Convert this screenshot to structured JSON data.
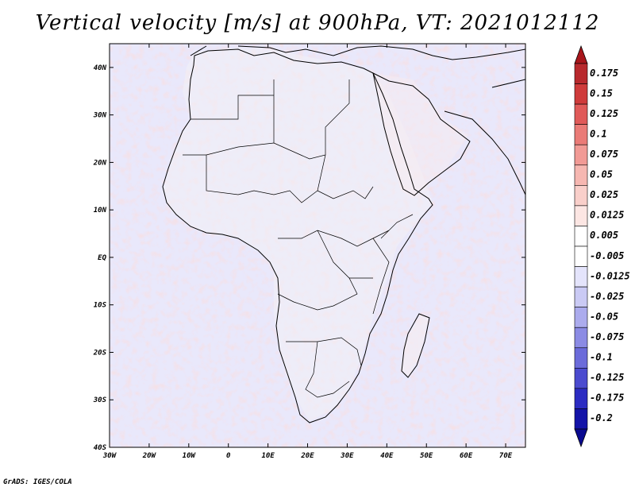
{
  "title": "Vertical velocity [m/s] at 900hPa, VT: 2021012112",
  "credit": "GrADS: IGES/COLA",
  "map": {
    "lon_range": [
      -30,
      75
    ],
    "lat_range": [
      -40,
      45
    ],
    "lat_ticks": [
      "40N",
      "30N",
      "20N",
      "10N",
      "EQ",
      "10S",
      "20S",
      "30S",
      "40S"
    ],
    "lon_ticks": [
      "30W",
      "20W",
      "10W",
      "0",
      "10E",
      "20E",
      "30E",
      "40E",
      "50E",
      "60E",
      "70E"
    ]
  },
  "legend": {
    "labels": [
      "0.175",
      "0.15",
      "0.125",
      "0.1",
      "0.075",
      "0.05",
      "0.025",
      "0.0125",
      "0.005",
      "-0.005",
      "-0.0125",
      "-0.025",
      "-0.05",
      "-0.075",
      "-0.1",
      "-0.125",
      "-0.175",
      "-0.2"
    ],
    "colors": [
      "#b8292d",
      "#cf3b3b",
      "#e05a59",
      "#ea7b77",
      "#f19a95",
      "#f6b7b1",
      "#f9cfca",
      "#fce6e3",
      "#ffffff",
      "#ffffff",
      "#e4e4fb",
      "#cacaf4",
      "#ababed",
      "#8b8be4",
      "#6b6bda",
      "#4b4bcf",
      "#2c2cc2",
      "#1414a8"
    ],
    "top_color": "#a8161b",
    "bottom_color": "#0a0a90"
  }
}
